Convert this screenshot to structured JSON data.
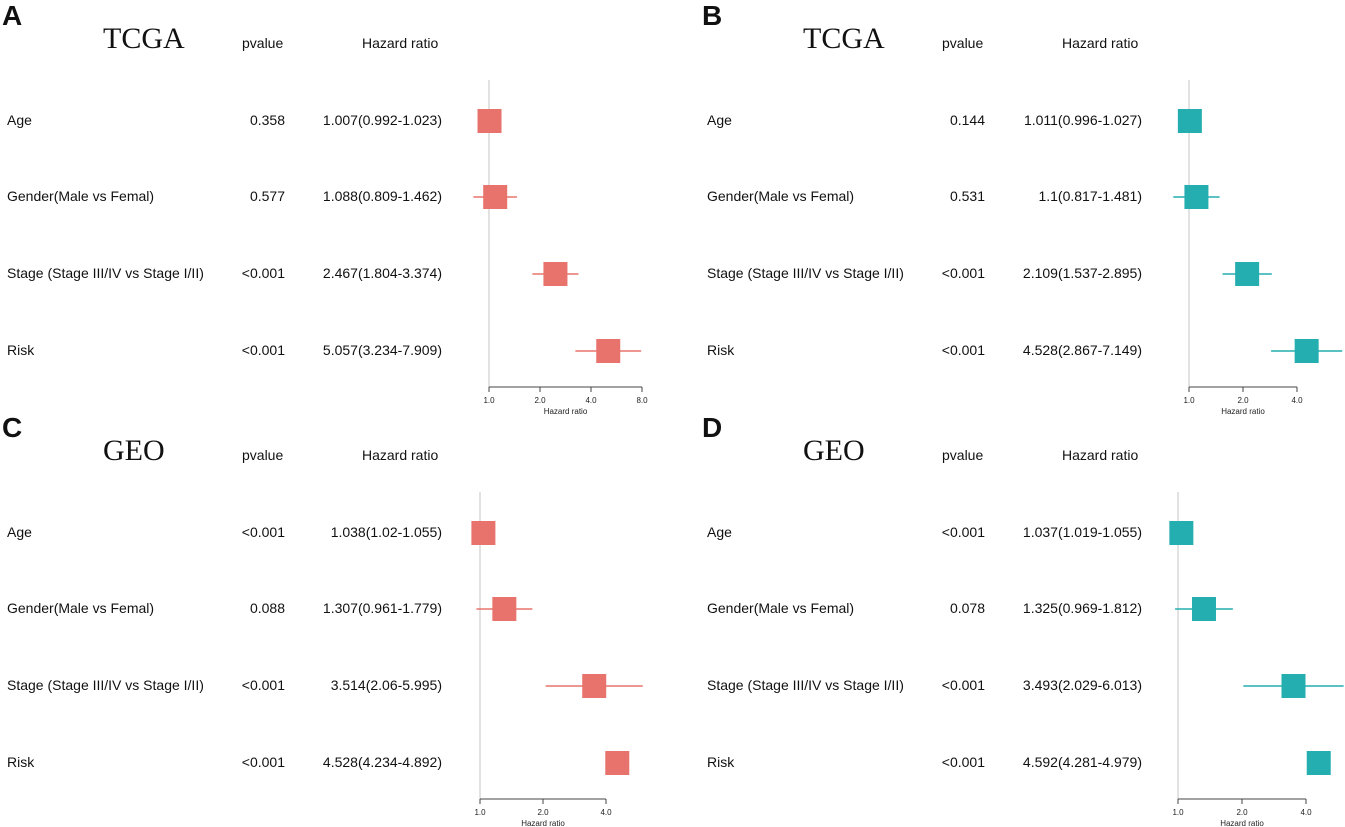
{
  "chart_data": [
    {
      "type": "forest",
      "panel": "A",
      "title": "TCGA",
      "columns": {
        "pvalue": "pvalue",
        "hazard_ratio": "Hazard ratio"
      },
      "xlabel": "Hazard ratio",
      "x_scale": "log",
      "x_ticks": [
        1.0,
        2.0,
        4.0,
        8.0
      ],
      "x_tick_labels": [
        "1.0",
        "2.0",
        "4.0",
        "8.0"
      ],
      "reference_line": 1.0,
      "color": "#e8736c",
      "rows": [
        {
          "label": "Age",
          "pvalue": "0.358",
          "hr_text": "1.007(0.992-1.023)",
          "hr": 1.007,
          "lower": 0.992,
          "upper": 1.023
        },
        {
          "label": "Gender(Male vs Femal)",
          "pvalue": "0.577",
          "hr_text": "1.088(0.809-1.462)",
          "hr": 1.088,
          "lower": 0.809,
          "upper": 1.462
        },
        {
          "label": "Stage (Stage III/IV vs Stage I/II)",
          "pvalue": "<0.001",
          "hr_text": "2.467(1.804-3.374)",
          "hr": 2.467,
          "lower": 1.804,
          "upper": 3.374
        },
        {
          "label": "Risk",
          "pvalue": "<0.001",
          "hr_text": "5.057(3.234-7.909)",
          "hr": 5.057,
          "lower": 3.234,
          "upper": 7.909
        }
      ]
    },
    {
      "type": "forest",
      "panel": "B",
      "title": "TCGA",
      "columns": {
        "pvalue": "pvalue",
        "hazard_ratio": "Hazard ratio"
      },
      "xlabel": "Hazard ratio",
      "x_scale": "log",
      "x_ticks": [
        1.0,
        2.0,
        4.0
      ],
      "x_tick_labels": [
        "1.0",
        "2.0",
        "4.0"
      ],
      "reference_line": 1.0,
      "color": "#25aeb0",
      "rows": [
        {
          "label": "Age",
          "pvalue": "0.144",
          "hr_text": "1.011(0.996-1.027)",
          "hr": 1.011,
          "lower": 0.996,
          "upper": 1.027
        },
        {
          "label": "Gender(Male vs Femal)",
          "pvalue": "0.531",
          "hr_text": "1.1(0.817-1.481)",
          "hr": 1.1,
          "lower": 0.817,
          "upper": 1.481
        },
        {
          "label": "Stage (Stage III/IV vs Stage I/II)",
          "pvalue": "<0.001",
          "hr_text": "2.109(1.537-2.895)",
          "hr": 2.109,
          "lower": 1.537,
          "upper": 2.895
        },
        {
          "label": "Risk",
          "pvalue": "<0.001",
          "hr_text": "4.528(2.867-7.149)",
          "hr": 4.528,
          "lower": 2.867,
          "upper": 7.149
        }
      ]
    },
    {
      "type": "forest",
      "panel": "C",
      "title": "GEO",
      "columns": {
        "pvalue": "pvalue",
        "hazard_ratio": "Hazard ratio"
      },
      "xlabel": "Hazard ratio",
      "x_scale": "log",
      "x_ticks": [
        1.0,
        2.0,
        4.0
      ],
      "x_tick_labels": [
        "1.0",
        "2.0",
        "4.0"
      ],
      "reference_line": 1.0,
      "color": "#e8736c",
      "rows": [
        {
          "label": "Age",
          "pvalue": "<0.001",
          "hr_text": "1.038(1.02-1.055)",
          "hr": 1.038,
          "lower": 1.02,
          "upper": 1.055
        },
        {
          "label": "Gender(Male vs Femal)",
          "pvalue": "0.088",
          "hr_text": "1.307(0.961-1.779)",
          "hr": 1.307,
          "lower": 0.961,
          "upper": 1.779
        },
        {
          "label": "Stage (Stage III/IV vs Stage I/II)",
          "pvalue": "<0.001",
          "hr_text": "3.514(2.06-5.995)",
          "hr": 3.514,
          "lower": 2.06,
          "upper": 5.995
        },
        {
          "label": "Risk",
          "pvalue": "<0.001",
          "hr_text": "4.528(4.234-4.892)",
          "hr": 4.528,
          "lower": 4.234,
          "upper": 4.892
        }
      ]
    },
    {
      "type": "forest",
      "panel": "D",
      "title": "GEO",
      "columns": {
        "pvalue": "pvalue",
        "hazard_ratio": "Hazard ratio"
      },
      "xlabel": "Hazard ratio",
      "x_scale": "log",
      "x_ticks": [
        1.0,
        2.0,
        4.0
      ],
      "x_tick_labels": [
        "1.0",
        "2.0",
        "4.0"
      ],
      "reference_line": 1.0,
      "color": "#25aeb0",
      "rows": [
        {
          "label": "Age",
          "pvalue": "<0.001",
          "hr_text": "1.037(1.019-1.055)",
          "hr": 1.037,
          "lower": 1.019,
          "upper": 1.055
        },
        {
          "label": "Gender(Male vs Femal)",
          "pvalue": "0.078",
          "hr_text": "1.325(0.969-1.812)",
          "hr": 1.325,
          "lower": 0.969,
          "upper": 1.812
        },
        {
          "label": "Stage (Stage III/IV vs Stage I/II)",
          "pvalue": "<0.001",
          "hr_text": "3.493(2.029-6.013)",
          "hr": 3.493,
          "lower": 2.029,
          "upper": 6.013
        },
        {
          "label": "Risk",
          "pvalue": "<0.001",
          "hr_text": "4.592(4.281-4.979)",
          "hr": 4.592,
          "lower": 4.281,
          "upper": 4.979
        }
      ]
    }
  ]
}
